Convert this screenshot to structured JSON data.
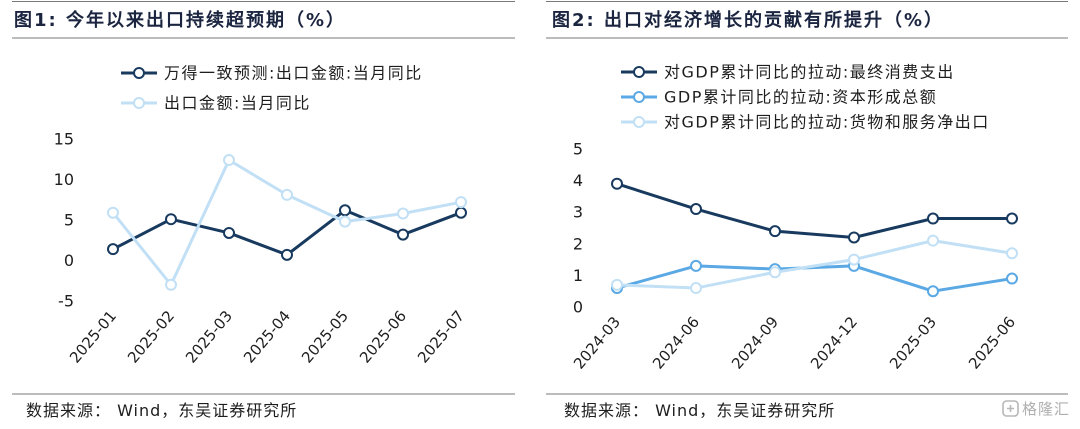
{
  "colors": {
    "title": "#1b2540",
    "text": "#1e1e1e",
    "rule": "#7a7a7a",
    "watermark": "#9c9c9c"
  },
  "panels": [
    {
      "source": "数据来源： Wind，东吴证券研究所"
    },
    {
      "source": "数据来源： Wind，东吴证券研究所"
    }
  ],
  "chart_data": [
    {
      "type": "line",
      "title": "图1: 今年以来出口持续超预期（%）",
      "xlabel": "",
      "ylabel": "",
      "categories": [
        "2025-01",
        "2025-02",
        "2025-03",
        "2025-04",
        "2025-05",
        "2025-06",
        "2025-07"
      ],
      "ylim": [
        -5,
        15
      ],
      "yticks": [
        -5,
        0,
        5,
        10,
        15
      ],
      "grid": false,
      "legend": "top",
      "series": [
        {
          "name": "万得一致预测:出口金额:当月同比",
          "color": "#183a5f",
          "values": [
            1.4,
            5.1,
            3.4,
            0.7,
            6.2,
            3.2,
            5.9
          ]
        },
        {
          "name": "出口金额:当月同比",
          "color": "#c2e0f5",
          "values": [
            5.9,
            -3.0,
            12.4,
            8.1,
            4.8,
            5.8,
            7.2
          ]
        }
      ]
    },
    {
      "type": "line",
      "title": "图2: 出口对经济增长的贡献有所提升（%）",
      "xlabel": "",
      "ylabel": "",
      "categories": [
        "2024-03",
        "2024-06",
        "2024-09",
        "2024-12",
        "2025-03",
        "2025-06"
      ],
      "ylim": [
        0,
        5
      ],
      "yticks": [
        0,
        1,
        2,
        3,
        4,
        5
      ],
      "grid": false,
      "legend": "top",
      "series": [
        {
          "name": "对GDP累计同比的拉动:最终消费支出",
          "color": "#183a5f",
          "values": [
            3.9,
            3.1,
            2.4,
            2.2,
            2.8,
            2.8
          ]
        },
        {
          "name": "GDP累计同比的拉动:资本形成总额",
          "color": "#5aa8e4",
          "values": [
            0.6,
            1.3,
            1.2,
            1.3,
            0.5,
            0.9
          ]
        },
        {
          "name": "对GDP累计同比的拉动:货物和服务净出口",
          "color": "#c2e0f5",
          "values": [
            0.7,
            0.6,
            1.1,
            1.5,
            2.1,
            1.7
          ]
        }
      ]
    }
  ],
  "watermark": {
    "text": "格隆汇"
  }
}
